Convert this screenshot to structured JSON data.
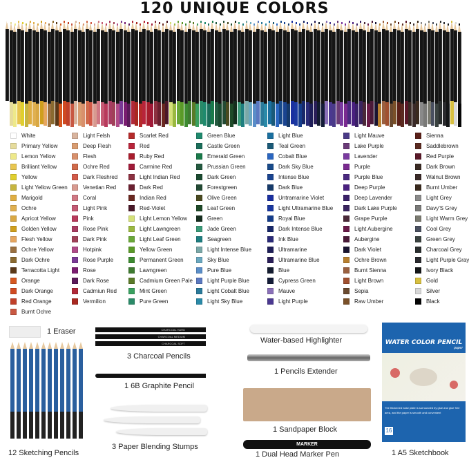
{
  "title": "120 UNIQUE COLORS",
  "colors": [
    [
      [
        "White",
        "#ffffff"
      ],
      [
        "Primary Yellow",
        "#e6dc9c"
      ],
      [
        "Lemon Yellow",
        "#eee98a"
      ],
      [
        "Brilliant Yellow",
        "#e8c650"
      ],
      [
        "Yellow",
        "#e0cf2e"
      ],
      [
        "Light Yellow Green",
        "#c6b540"
      ],
      [
        "Marigold",
        "#dfae42"
      ],
      [
        "Ochre",
        "#e0b050"
      ],
      [
        "Apricot Yellow",
        "#d9a844"
      ],
      [
        "Golden Yellow",
        "#cf9f1e"
      ],
      [
        "Flesh Yellow",
        "#e6a660"
      ],
      [
        "Ochre Yellow",
        "#9a7040"
      ],
      [
        "Dark Ochre",
        "#8a6a30"
      ],
      [
        "Terracotta Light",
        "#5a3818"
      ],
      [
        "Orange",
        "#d65820"
      ],
      [
        "Dark Orange",
        "#cf4a22"
      ],
      [
        "Red Orange",
        "#c0402a"
      ],
      [
        "Burnt Ochre",
        "#c85842"
      ]
    ],
    [
      [
        "Light Felsh",
        "#d9b49e"
      ],
      [
        "Deep Flesh",
        "#d99c70"
      ],
      [
        "Flesh",
        "#d8906c"
      ],
      [
        "Ochre Red",
        "#d06a4a"
      ],
      [
        "Dark Fleshred",
        "#d25a48"
      ],
      [
        "Venetian Red",
        "#d89a90"
      ],
      [
        "Coral",
        "#d07884"
      ],
      [
        "Light Pink",
        "#c45a74"
      ],
      [
        "Pink",
        "#b83a5c"
      ],
      [
        "Rose Pink",
        "#a83c62"
      ],
      [
        "Dark Pink",
        "#a04058"
      ],
      [
        "Hotpink",
        "#b04a88"
      ],
      [
        "Rose Purple",
        "#7a3a96"
      ],
      [
        "Rose",
        "#7a1c70"
      ],
      [
        "Dark Rose",
        "#5a1a5a"
      ],
      [
        "Cadmiun Red",
        "#b02838"
      ],
      [
        "Vermilion",
        "#a82820"
      ]
    ],
    [
      [
        "Scarlet Red",
        "#b52a2a"
      ],
      [
        "Red",
        "#b8243a"
      ],
      [
        "Ruby Red",
        "#a81c2c"
      ],
      [
        "Carmine Red",
        "#a01a38"
      ],
      [
        "Light Indian Red",
        "#8c3040"
      ],
      [
        "Dark Red",
        "#6a2030"
      ],
      [
        "Indian Red",
        "#6a2820"
      ],
      [
        "Red-Violet",
        "#4a1828"
      ],
      [
        "Light Lemon Yellow",
        "#d4e078"
      ],
      [
        "Light Lawngreen",
        "#9ab840"
      ],
      [
        "Light Leaf Green",
        "#6aa838"
      ],
      [
        "Yellow Green",
        "#5a9a28"
      ],
      [
        "Permanent Green",
        "#3c8a30"
      ],
      [
        "Lawngreen",
        "#3e7a30"
      ],
      [
        "Cadmium Green Pale",
        "#5a7a28"
      ],
      [
        "Mint Green",
        "#3aa060"
      ],
      [
        "Pure Green",
        "#2a8a68"
      ]
    ],
    [
      [
        "Green Blue",
        "#1f8a6e"
      ],
      [
        "Castle Green",
        "#1a6e5a"
      ],
      [
        "Emerald Green",
        "#1a7a4a"
      ],
      [
        "Prussian Green",
        "#245a40"
      ],
      [
        "Dark Green",
        "#1a4a30"
      ],
      [
        "Forestgreen",
        "#234a34"
      ],
      [
        "Olive Green",
        "#4a4a20"
      ],
      [
        "Leaf Green",
        "#1e4a28"
      ],
      [
        "Green",
        "#152e1e"
      ],
      [
        "Jade Green",
        "#3a9a78"
      ],
      [
        "Seagreen",
        "#1e7e80"
      ],
      [
        "Light Intense Blue",
        "#7aa8a8"
      ],
      [
        "Sky Blue",
        "#6aa8c0"
      ],
      [
        "Pure Blue",
        "#5a8ec8"
      ],
      [
        "Light Purple Blue",
        "#5a78c0"
      ],
      [
        "Light Cobalt Blue",
        "#2a7a9a"
      ],
      [
        "Light Sky Blue",
        "#2a8aa8"
      ]
    ],
    [
      [
        "Light Blue",
        "#1a70a0"
      ],
      [
        "Teal Green",
        "#1a5a78"
      ],
      [
        "Cobalt Blue",
        "#2a66c0"
      ],
      [
        "Dark Sky Blue",
        "#184a8a"
      ],
      [
        "Intense Blue",
        "#1a4490"
      ],
      [
        "Dark Blue",
        "#163a6a"
      ],
      [
        "Untramarine Violet",
        "#1a30a0"
      ],
      [
        "Light Ultramarine Blue",
        "#1a38a0"
      ],
      [
        "Royal Blue",
        "#143c8a"
      ],
      [
        "Dark Intense Blue",
        "#18286a"
      ],
      [
        "Ink Blue",
        "#2a2a78"
      ],
      [
        "Ultramarine",
        "#1e1e58"
      ],
      [
        "Ultramarine Blue",
        "#2a1e58"
      ],
      [
        "Blue",
        "#141c30"
      ],
      [
        "Cypress Green",
        "#141c38"
      ],
      [
        "Mauve",
        "#8a70b8"
      ],
      [
        "Light Purple",
        "#4a3890"
      ]
    ],
    [
      [
        "Light Mauve",
        "#4a3a88"
      ],
      [
        "Lake Purple",
        "#6a3a78"
      ],
      [
        "Lavender",
        "#7a3aa0"
      ],
      [
        "Purple",
        "#7a2a90"
      ],
      [
        "Purple Blue",
        "#4a2a80"
      ],
      [
        "Deep Purple",
        "#4a2080"
      ],
      [
        "Deep Lavender",
        "#3a2068"
      ],
      [
        "Dark Lake Purple",
        "#3a2460"
      ],
      [
        "Grape Purple",
        "#4a2838"
      ],
      [
        "Light Aubergine",
        "#6a1a48"
      ],
      [
        "Aubergine",
        "#4a1a38"
      ],
      [
        "Dark Violet",
        "#1a1430"
      ],
      [
        "Ochre Brown",
        "#b88030"
      ],
      [
        "Burnt Sienna",
        "#9a6040"
      ],
      [
        "Light Brown",
        "#a05030"
      ],
      [
        "Sepia",
        "#6a4a30"
      ],
      [
        "Raw Umber",
        "#7a5028"
      ]
    ],
    [
      [
        "Sienna",
        "#5a2018"
      ],
      [
        "Saddlebrown",
        "#5a2a20"
      ],
      [
        "Red Purple",
        "#5a1828"
      ],
      [
        "Dark Brown",
        "#3a2a24"
      ],
      [
        "Walnut Brown",
        "#3a2a28"
      ],
      [
        "Burnt Umber",
        "#3a2a1e"
      ],
      [
        "Light Grey",
        "#8a8a8a"
      ],
      [
        "Davy'S Grey",
        "#7a7a78"
      ],
      [
        "Light Warm Grey",
        "#7a7a70"
      ],
      [
        "Cool Grey",
        "#4a5060"
      ],
      [
        "Green Grey",
        "#3a4240"
      ],
      [
        "Charcoal Grey",
        "#2a2e2e"
      ],
      [
        "Light Purple Gray",
        "#2a2a2e"
      ],
      [
        "Ivory Black",
        "#141618"
      ],
      [
        "Gold",
        "#d8c040"
      ],
      [
        "Silver",
        "#d8d8d8"
      ],
      [
        "Black",
        "#050505"
      ]
    ]
  ],
  "accessories": {
    "eraser": "1 Eraser",
    "sketching": "12 Sketching Pencils",
    "charcoal": "3 Charcoal Pencils",
    "charcoal_marks": [
      "CHARCOAL HARD",
      "CHARCOAL MEDIUM",
      "CHARCOAL SOFT"
    ],
    "graphite": "1 6B Graphite Pencil",
    "stumps": "3 Paper Blending Stumps",
    "highlighter": "Water-based Highlighter",
    "extender": "1 Pencils Extender",
    "sandpaper": "1 Sandpaper Block",
    "marker": "1 Dual Head Marker Pen",
    "marker_brand": "MARKER",
    "sketchbook": "1 A5 Sketchbook",
    "book_title": "WATER COLOR PENCIL",
    "book_sub": "paper",
    "book_text": "The thickened base plate is surrounded by glue and glue free area, and the paper is smooth and convenient",
    "book_sheets": "16"
  }
}
